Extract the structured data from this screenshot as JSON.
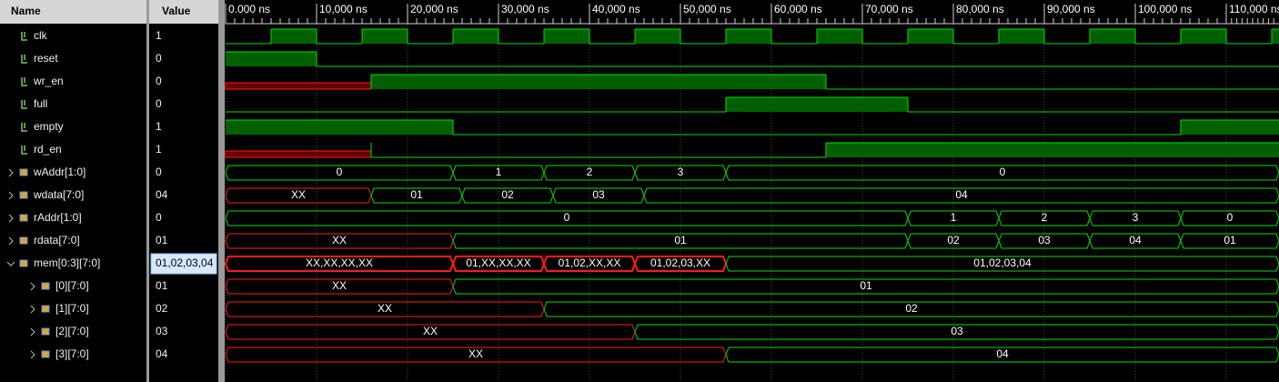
{
  "header": {
    "name": "Name",
    "value": "Value"
  },
  "timeline": {
    "xlim": [
      0,
      115800
    ],
    "ticks": [
      {
        "value": 0,
        "label": "0.000 ns"
      },
      {
        "value": 10000,
        "label": "10,000 ns"
      },
      {
        "value": 20000,
        "label": "20,000 ns"
      },
      {
        "value": 30000,
        "label": "30,000 ns"
      },
      {
        "value": 40000,
        "label": "40,000 ns"
      },
      {
        "value": 50000,
        "label": "50,000 ns"
      },
      {
        "value": 60000,
        "label": "60,000 ns"
      },
      {
        "value": 70000,
        "label": "70,000 ns"
      },
      {
        "value": 80000,
        "label": "80,000 ns"
      },
      {
        "value": 90000,
        "label": "90,000 ns"
      },
      {
        "value": 100000,
        "label": "100,000 ns"
      },
      {
        "value": 110000,
        "label": "110,000 ns"
      }
    ]
  },
  "signals": [
    {
      "name": "clk",
      "value": "1",
      "kind": "bit",
      "segments": [
        {
          "from": 0,
          "to": 5000,
          "level": 0
        },
        {
          "from": 5000,
          "to": 10000,
          "level": 1
        },
        {
          "from": 10000,
          "to": 15000,
          "level": 0
        },
        {
          "from": 15000,
          "to": 20000,
          "level": 1
        },
        {
          "from": 20000,
          "to": 25000,
          "level": 0
        },
        {
          "from": 25000,
          "to": 30000,
          "level": 1
        },
        {
          "from": 30000,
          "to": 35000,
          "level": 0
        },
        {
          "from": 35000,
          "to": 40000,
          "level": 1
        },
        {
          "from": 40000,
          "to": 45000,
          "level": 0
        },
        {
          "from": 45000,
          "to": 50000,
          "level": 1
        },
        {
          "from": 50000,
          "to": 55000,
          "level": 0
        },
        {
          "from": 55000,
          "to": 60000,
          "level": 1
        },
        {
          "from": 60000,
          "to": 65000,
          "level": 0
        },
        {
          "from": 65000,
          "to": 70000,
          "level": 1
        },
        {
          "from": 70000,
          "to": 75000,
          "level": 0
        },
        {
          "from": 75000,
          "to": 80000,
          "level": 1
        },
        {
          "from": 80000,
          "to": 85000,
          "level": 0
        },
        {
          "from": 85000,
          "to": 90000,
          "level": 1
        },
        {
          "from": 90000,
          "to": 95000,
          "level": 0
        },
        {
          "from": 95000,
          "to": 100000,
          "level": 1
        },
        {
          "from": 100000,
          "to": 105000,
          "level": 0
        },
        {
          "from": 105000,
          "to": 110000,
          "level": 1
        },
        {
          "from": 110000,
          "to": 115000,
          "level": 0
        },
        {
          "from": 115000,
          "to": 115800,
          "level": 1
        }
      ]
    },
    {
      "name": "reset",
      "value": "0",
      "kind": "bit",
      "segments": [
        {
          "from": 0,
          "to": 10000,
          "level": 1
        },
        {
          "from": 10000,
          "to": 115800,
          "level": 0
        }
      ]
    },
    {
      "name": "wr_en",
      "value": "0",
      "kind": "bit",
      "segments": [
        {
          "from": 0,
          "to": 16000,
          "level": "X"
        },
        {
          "from": 16000,
          "to": 66000,
          "level": 1
        },
        {
          "from": 66000,
          "to": 115800,
          "level": 0
        }
      ]
    },
    {
      "name": "full",
      "value": "0",
      "kind": "bit",
      "segments": [
        {
          "from": 0,
          "to": 55000,
          "level": 0
        },
        {
          "from": 55000,
          "to": 75000,
          "level": 1
        },
        {
          "from": 75000,
          "to": 115800,
          "level": 0
        }
      ]
    },
    {
      "name": "empty",
      "value": "1",
      "kind": "bit",
      "segments": [
        {
          "from": 0,
          "to": 25000,
          "level": 1
        },
        {
          "from": 25000,
          "to": 105000,
          "level": 0
        },
        {
          "from": 105000,
          "to": 115800,
          "level": 1
        }
      ]
    },
    {
      "name": "rd_en",
      "value": "1",
      "kind": "bit",
      "segments": [
        {
          "from": 0,
          "to": 16000,
          "level": "X"
        },
        {
          "from": 16000,
          "to": 66000,
          "level": 0
        },
        {
          "from": 66000,
          "to": 115800,
          "level": 1
        }
      ]
    },
    {
      "name": "wAddr[1:0]",
      "value": "0",
      "kind": "bus",
      "segments": [
        {
          "from": 0,
          "to": 25000,
          "label": "0"
        },
        {
          "from": 25000,
          "to": 35000,
          "label": "1"
        },
        {
          "from": 35000,
          "to": 45000,
          "label": "2"
        },
        {
          "from": 45000,
          "to": 55000,
          "label": "3"
        },
        {
          "from": 55000,
          "to": 115800,
          "label": "0"
        }
      ]
    },
    {
      "name": "wdata[7:0]",
      "value": "04",
      "kind": "bus",
      "segments": [
        {
          "from": 0,
          "to": 16000,
          "label": "XX"
        },
        {
          "from": 16000,
          "to": 26000,
          "label": "01"
        },
        {
          "from": 26000,
          "to": 36000,
          "label": "02"
        },
        {
          "from": 36000,
          "to": 46000,
          "label": "03"
        },
        {
          "from": 46000,
          "to": 115800,
          "label": "04"
        }
      ]
    },
    {
      "name": "rAddr[1:0]",
      "value": "0",
      "kind": "bus",
      "segments": [
        {
          "from": 0,
          "to": 75000,
          "label": "0"
        },
        {
          "from": 75000,
          "to": 85000,
          "label": "1"
        },
        {
          "from": 85000,
          "to": 95000,
          "label": "2"
        },
        {
          "from": 95000,
          "to": 105000,
          "label": "3"
        },
        {
          "from": 105000,
          "to": 115800,
          "label": "0"
        }
      ]
    },
    {
      "name": "rdata[7:0]",
      "value": "01",
      "kind": "bus",
      "segments": [
        {
          "from": 0,
          "to": 25000,
          "label": "XX"
        },
        {
          "from": 25000,
          "to": 75000,
          "label": "01"
        },
        {
          "from": 75000,
          "to": 85000,
          "label": "02"
        },
        {
          "from": 85000,
          "to": 95000,
          "label": "03"
        },
        {
          "from": 95000,
          "to": 105000,
          "label": "04"
        },
        {
          "from": 105000,
          "to": 115800,
          "label": "01"
        }
      ]
    },
    {
      "name": "mem[0:3][7:0]",
      "value": "01,02,03,04",
      "kind": "bus",
      "selected": true,
      "expanded": true,
      "segments": [
        {
          "from": 0,
          "to": 25000,
          "label": "XX,XX,XX,XX"
        },
        {
          "from": 25000,
          "to": 35000,
          "label": "01,XX,XX,XX"
        },
        {
          "from": 35000,
          "to": 45000,
          "label": "01,02,XX,XX"
        },
        {
          "from": 45000,
          "to": 55000,
          "label": "01,02,03,XX"
        },
        {
          "from": 55000,
          "to": 115800,
          "label": "01,02,03,04"
        }
      ],
      "children": [
        {
          "name": "[0][7:0]",
          "value": "01",
          "kind": "bus",
          "segments": [
            {
              "from": 0,
              "to": 25000,
              "label": "XX"
            },
            {
              "from": 25000,
              "to": 115800,
              "label": "01"
            }
          ]
        },
        {
          "name": "[1][7:0]",
          "value": "02",
          "kind": "bus",
          "segments": [
            {
              "from": 0,
              "to": 35000,
              "label": "XX"
            },
            {
              "from": 35000,
              "to": 115800,
              "label": "02"
            }
          ]
        },
        {
          "name": "[2][7:0]",
          "value": "03",
          "kind": "bus",
          "segments": [
            {
              "from": 0,
              "to": 45000,
              "label": "XX"
            },
            {
              "from": 45000,
              "to": 115800,
              "label": "03"
            }
          ]
        },
        {
          "name": "[3][7:0]",
          "value": "04",
          "kind": "bus",
          "segments": [
            {
              "from": 0,
              "to": 55000,
              "label": "XX"
            },
            {
              "from": 55000,
              "to": 115800,
              "label": "04"
            }
          ]
        }
      ]
    }
  ]
}
